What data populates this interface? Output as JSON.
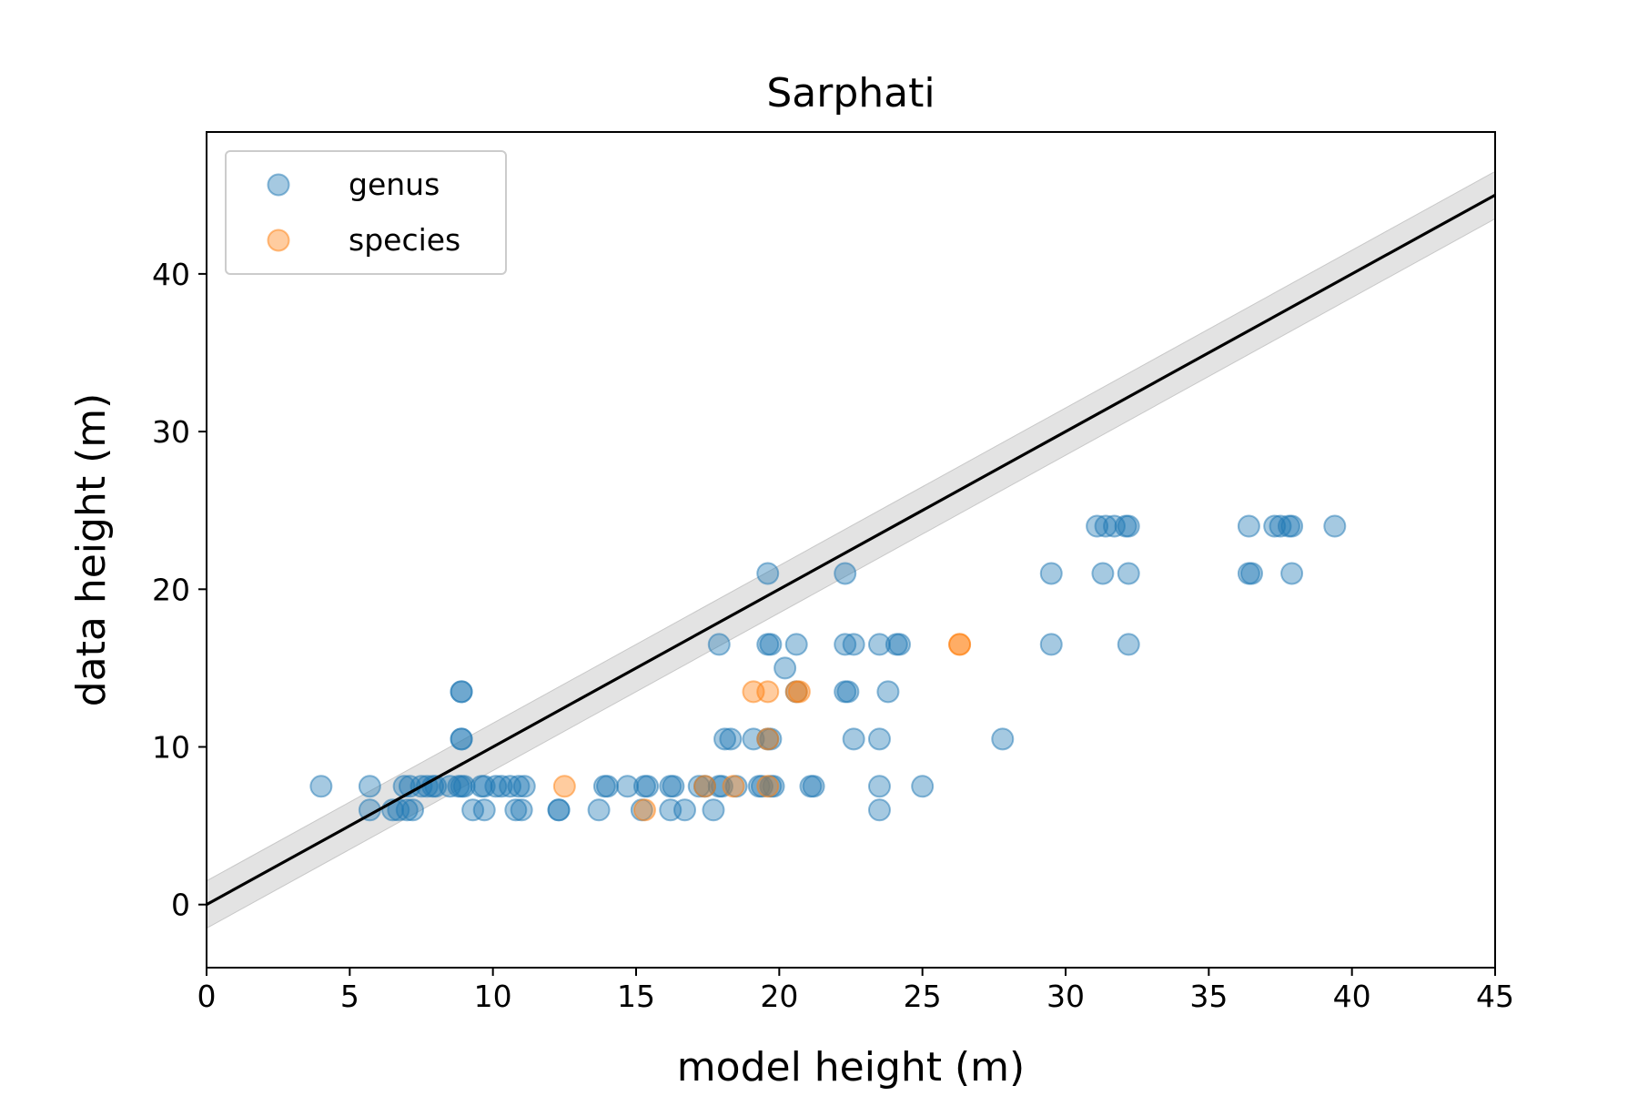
{
  "chart_data": {
    "type": "scatter",
    "title": "Sarphati",
    "xlabel": "model height (m)",
    "ylabel": "data height (m)",
    "xlim": [
      0,
      45
    ],
    "ylim": [
      -4,
      49
    ],
    "xticks": [
      0,
      5,
      10,
      15,
      20,
      25,
      30,
      35,
      40,
      45
    ],
    "yticks": [
      0,
      10,
      20,
      30,
      40
    ],
    "grid": false,
    "legend_position": "top-left",
    "reference_line": {
      "slope": 1,
      "intercept": 0,
      "band": 1.5,
      "color": "#000000",
      "band_color": "#d9d9d9"
    },
    "series": [
      {
        "name": "genus",
        "color": "#1f77b4",
        "alpha": 0.4,
        "points": [
          [
            4.0,
            7.5
          ],
          [
            5.7,
            7.5
          ],
          [
            5.7,
            6.0
          ],
          [
            6.5,
            6.0
          ],
          [
            6.7,
            6.0
          ],
          [
            6.9,
            7.5
          ],
          [
            7.0,
            6.0
          ],
          [
            7.1,
            7.5
          ],
          [
            7.2,
            6.0
          ],
          [
            7.5,
            7.5
          ],
          [
            7.7,
            7.5
          ],
          [
            7.9,
            7.5
          ],
          [
            8.0,
            7.5
          ],
          [
            8.5,
            7.5
          ],
          [
            8.8,
            7.5
          ],
          [
            8.9,
            7.5
          ],
          [
            8.9,
            10.5
          ],
          [
            8.9,
            10.5
          ],
          [
            8.9,
            13.5
          ],
          [
            8.9,
            13.5
          ],
          [
            9.0,
            7.5
          ],
          [
            9.3,
            6.0
          ],
          [
            9.6,
            7.5
          ],
          [
            9.7,
            6.0
          ],
          [
            9.7,
            7.5
          ],
          [
            10.1,
            7.5
          ],
          [
            10.3,
            7.5
          ],
          [
            10.6,
            7.5
          ],
          [
            10.8,
            6.0
          ],
          [
            10.9,
            7.5
          ],
          [
            11.0,
            6.0
          ],
          [
            11.1,
            7.5
          ],
          [
            12.3,
            6.0
          ],
          [
            12.3,
            6.0
          ],
          [
            13.7,
            6.0
          ],
          [
            13.9,
            7.5
          ],
          [
            14.0,
            7.5
          ],
          [
            14.7,
            7.5
          ],
          [
            15.2,
            6.0
          ],
          [
            15.3,
            7.5
          ],
          [
            15.4,
            7.5
          ],
          [
            16.2,
            7.5
          ],
          [
            16.3,
            7.5
          ],
          [
            16.2,
            6.0
          ],
          [
            16.7,
            6.0
          ],
          [
            17.2,
            7.5
          ],
          [
            17.4,
            7.5
          ],
          [
            17.7,
            6.0
          ],
          [
            17.9,
            16.5
          ],
          [
            17.9,
            7.5
          ],
          [
            18.0,
            7.5
          ],
          [
            18.1,
            10.5
          ],
          [
            18.3,
            10.5
          ],
          [
            18.5,
            7.5
          ],
          [
            19.1,
            10.5
          ],
          [
            19.3,
            7.5
          ],
          [
            19.4,
            7.5
          ],
          [
            19.6,
            10.5
          ],
          [
            19.7,
            10.5
          ],
          [
            19.6,
            21.0
          ],
          [
            19.6,
            16.5
          ],
          [
            19.7,
            16.5
          ],
          [
            19.7,
            7.5
          ],
          [
            19.8,
            7.5
          ],
          [
            20.2,
            15.0
          ],
          [
            20.6,
            16.5
          ],
          [
            20.6,
            13.5
          ],
          [
            21.1,
            7.5
          ],
          [
            21.2,
            7.5
          ],
          [
            22.3,
            21.0
          ],
          [
            22.3,
            16.5
          ],
          [
            22.3,
            13.5
          ],
          [
            22.4,
            13.5
          ],
          [
            22.6,
            16.5
          ],
          [
            22.6,
            10.5
          ],
          [
            23.5,
            16.5
          ],
          [
            23.5,
            10.5
          ],
          [
            23.5,
            7.5
          ],
          [
            23.5,
            6.0
          ],
          [
            23.8,
            13.5
          ],
          [
            24.1,
            16.5
          ],
          [
            24.2,
            16.5
          ],
          [
            25.0,
            7.5
          ],
          [
            27.8,
            10.5
          ],
          [
            29.5,
            21.0
          ],
          [
            29.5,
            16.5
          ],
          [
            31.1,
            24.0
          ],
          [
            31.4,
            24.0
          ],
          [
            31.7,
            24.0
          ],
          [
            31.3,
            21.0
          ],
          [
            32.1,
            24.0
          ],
          [
            32.2,
            24.0
          ],
          [
            32.2,
            21.0
          ],
          [
            32.2,
            16.5
          ],
          [
            36.4,
            24.0
          ],
          [
            36.4,
            21.0
          ],
          [
            36.5,
            21.0
          ],
          [
            37.3,
            24.0
          ],
          [
            37.5,
            24.0
          ],
          [
            37.8,
            24.0
          ],
          [
            37.9,
            24.0
          ],
          [
            37.9,
            21.0
          ],
          [
            39.4,
            24.0
          ]
        ]
      },
      {
        "name": "species",
        "color": "#ff7f0e",
        "alpha": 0.4,
        "points": [
          [
            12.5,
            7.5
          ],
          [
            15.3,
            6.0
          ],
          [
            17.4,
            7.5
          ],
          [
            18.4,
            7.5
          ],
          [
            19.1,
            13.5
          ],
          [
            19.6,
            13.5
          ],
          [
            19.6,
            10.5
          ],
          [
            19.6,
            7.5
          ],
          [
            20.6,
            13.5
          ],
          [
            20.7,
            13.5
          ],
          [
            26.3,
            16.5
          ],
          [
            26.3,
            16.5
          ]
        ]
      }
    ]
  }
}
